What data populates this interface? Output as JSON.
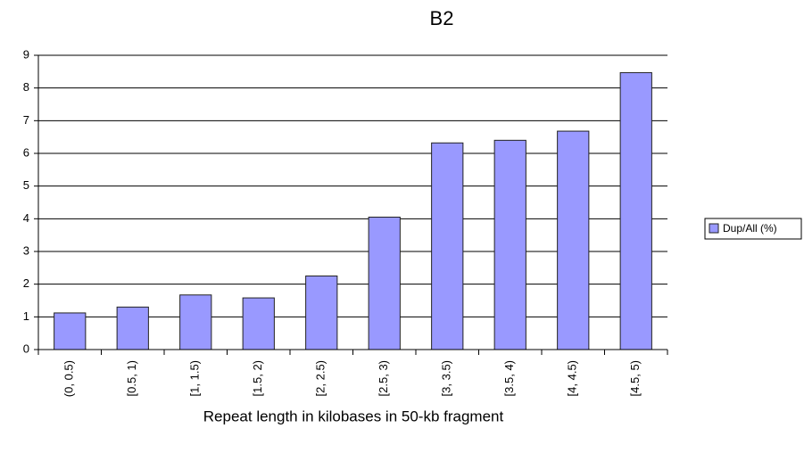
{
  "chart_data": {
    "type": "bar",
    "title": "B2",
    "x_label": "Repeat length in kilobases in 50-kb fragment",
    "categories": [
      "(0, 0.5)",
      "[0.5, 1)",
      "[1, 1.5)",
      "[1.5, 2)",
      "[2, 2.5)",
      "[2.5, 3)",
      "[3, 3.5)",
      "[3.5, 4)",
      "[4, 4.5)",
      "[4.5, 5)"
    ],
    "series": [
      {
        "name": "Dup/All (%)",
        "color": "#9999ff",
        "values": [
          1.12,
          1.3,
          1.67,
          1.58,
          2.25,
          4.05,
          6.32,
          6.4,
          6.68,
          8.47
        ]
      }
    ],
    "ylim": [
      0,
      9
    ],
    "yticks": [
      0,
      1,
      2,
      3,
      4,
      5,
      6,
      7,
      8,
      9
    ],
    "grid": true,
    "legend": "right"
  }
}
